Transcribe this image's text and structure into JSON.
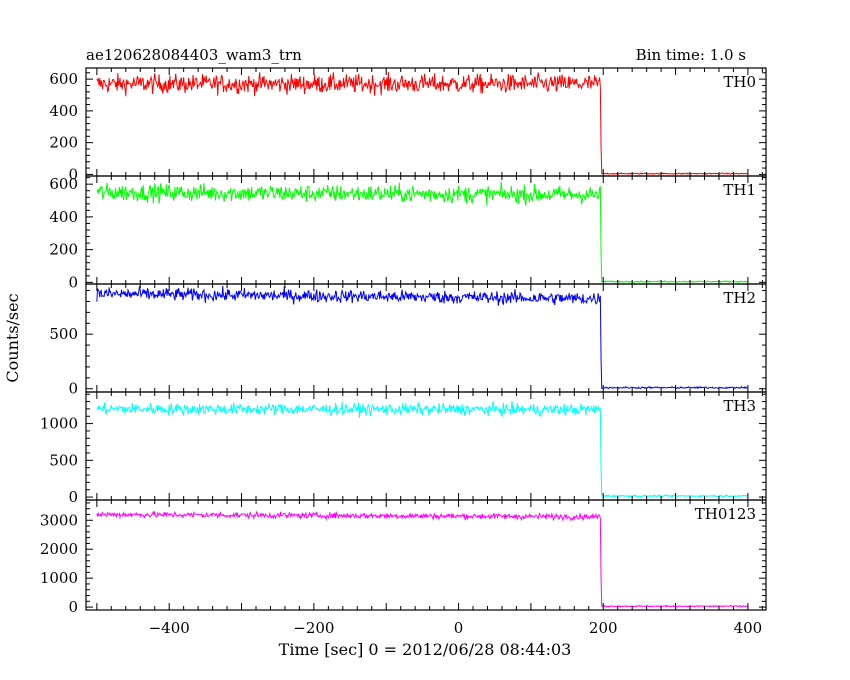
{
  "header": {
    "title": "ae120628084403_wam3_trn",
    "bin_time": "Bin time: 1.0 s"
  },
  "chart_data": {
    "type": "line",
    "xlabel": "Time [sec] 0 = 2012/06/28 08:44:03",
    "ylabel": "Counts/sec",
    "xlim": [
      -515,
      425
    ],
    "x_ticks": [
      -400,
      -200,
      0,
      200,
      400
    ],
    "x_data_range": [
      -500,
      400
    ],
    "drop_time": 197,
    "bin_time_s": 1.0,
    "grid": false,
    "panels": [
      {
        "name": "TH0",
        "color": "#ff0000",
        "ylim": [
          -10,
          670
        ],
        "y_ticks": [
          0,
          200,
          400,
          600
        ],
        "pre_level": 570,
        "pre_scatter": 30,
        "trend": 0,
        "post_level": 5
      },
      {
        "name": "TH1",
        "color": "#00ff00",
        "ylim": [
          -10,
          650
        ],
        "y_ticks": [
          0,
          200,
          400,
          600
        ],
        "pre_level": 550,
        "pre_scatter": 27,
        "trend": -15,
        "post_level": 5
      },
      {
        "name": "TH2",
        "color": "#0000ff",
        "ylim": [
          -30,
          960
        ],
        "y_ticks": [
          0,
          500
        ],
        "pre_level": 870,
        "pre_scatter": 30,
        "trend": -45,
        "post_level": 10
      },
      {
        "name": "TH3",
        "color": "#00ffff",
        "ylim": [
          -40,
          1430
        ],
        "y_ticks": [
          0,
          500,
          1000
        ],
        "pre_level": 1200,
        "pre_scatter": 40,
        "trend": -10,
        "post_level": 15
      },
      {
        "name": "TH0123",
        "color": "#ff00ff",
        "ylim": [
          -100,
          3700
        ],
        "y_ticks": [
          0,
          1000,
          2000,
          3000
        ],
        "pre_level": 3200,
        "pre_scatter": 50,
        "trend": -80,
        "post_level": 30
      }
    ]
  }
}
